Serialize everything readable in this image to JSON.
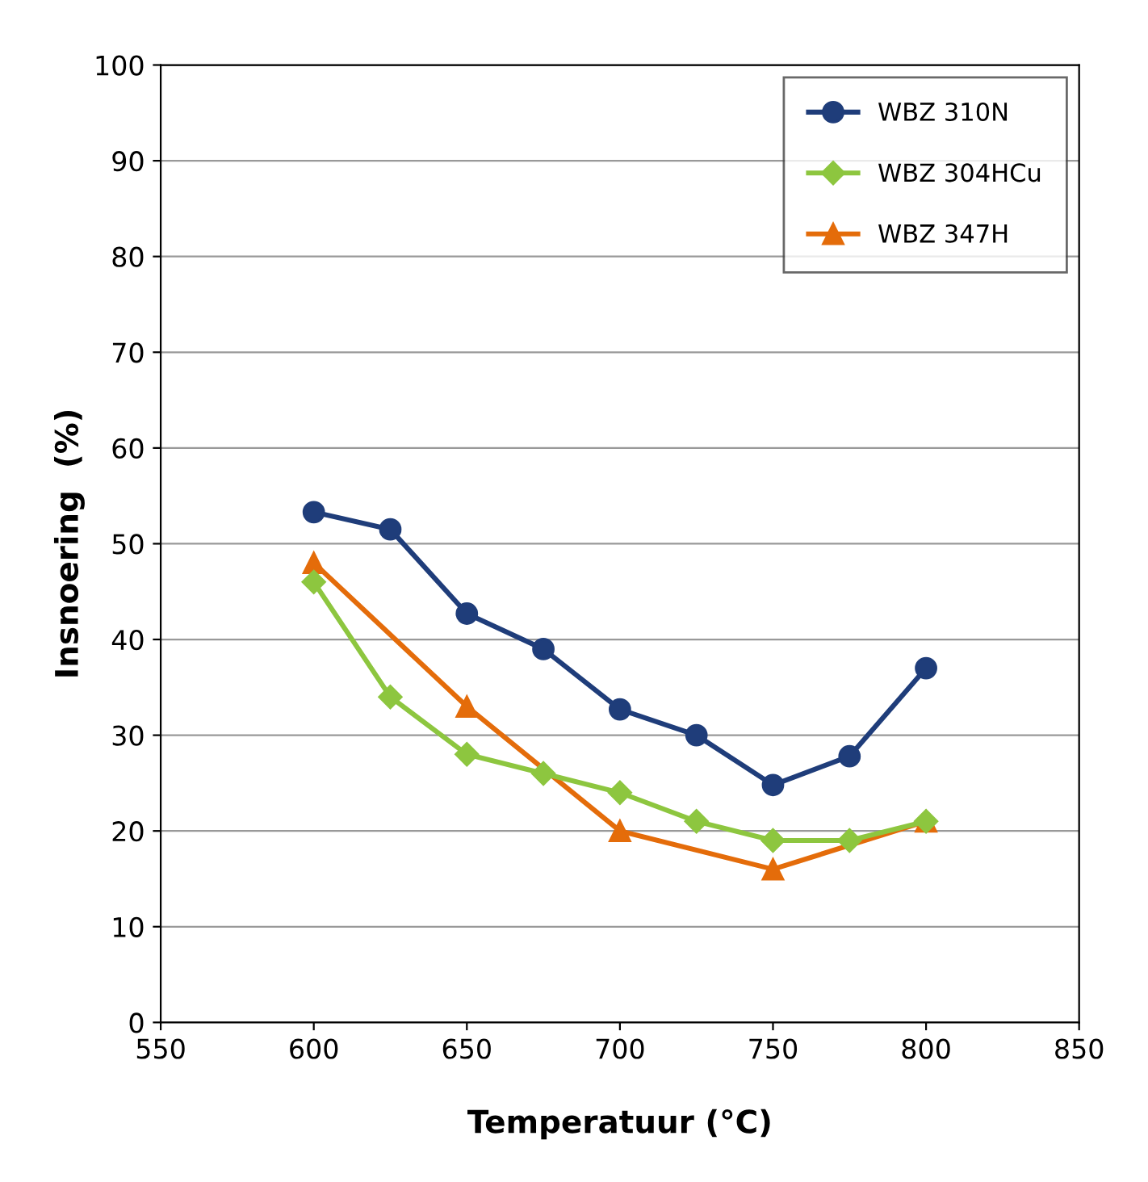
{
  "chart_data": {
    "type": "line",
    "xlabel": "Temperatuur (°C)",
    "ylabel": "Insnoering  (%)",
    "xlim": [
      550,
      850
    ],
    "xticks": [
      550,
      600,
      650,
      700,
      750,
      800,
      850
    ],
    "ylim": [
      0,
      100
    ],
    "yticks": [
      0,
      10,
      20,
      30,
      40,
      50,
      60,
      70,
      80,
      90,
      100
    ],
    "grid": "y",
    "legend": "top right",
    "series": [
      {
        "name": "WBZ 310N",
        "color": "#1f3d7a",
        "marker": "circle",
        "x": [
          600,
          625,
          650,
          675,
          700,
          725,
          750,
          775,
          800
        ],
        "values": [
          53.3,
          51.5,
          42.7,
          39,
          32.7,
          30,
          24.8,
          27.8,
          37
        ]
      },
      {
        "name": "WBZ 304HCu",
        "color": "#8dc63f",
        "marker": "diamond",
        "x": [
          600,
          625,
          650,
          675,
          700,
          725,
          750,
          775,
          800
        ],
        "values": [
          46,
          34,
          28,
          26,
          24,
          21,
          19,
          19,
          21
        ]
      },
      {
        "name": "WBZ 347H",
        "color": "#e46c0a",
        "marker": "triangle",
        "x": [
          600,
          650,
          700,
          750,
          800
        ],
        "values": [
          48,
          33,
          20,
          16,
          21
        ]
      }
    ]
  }
}
